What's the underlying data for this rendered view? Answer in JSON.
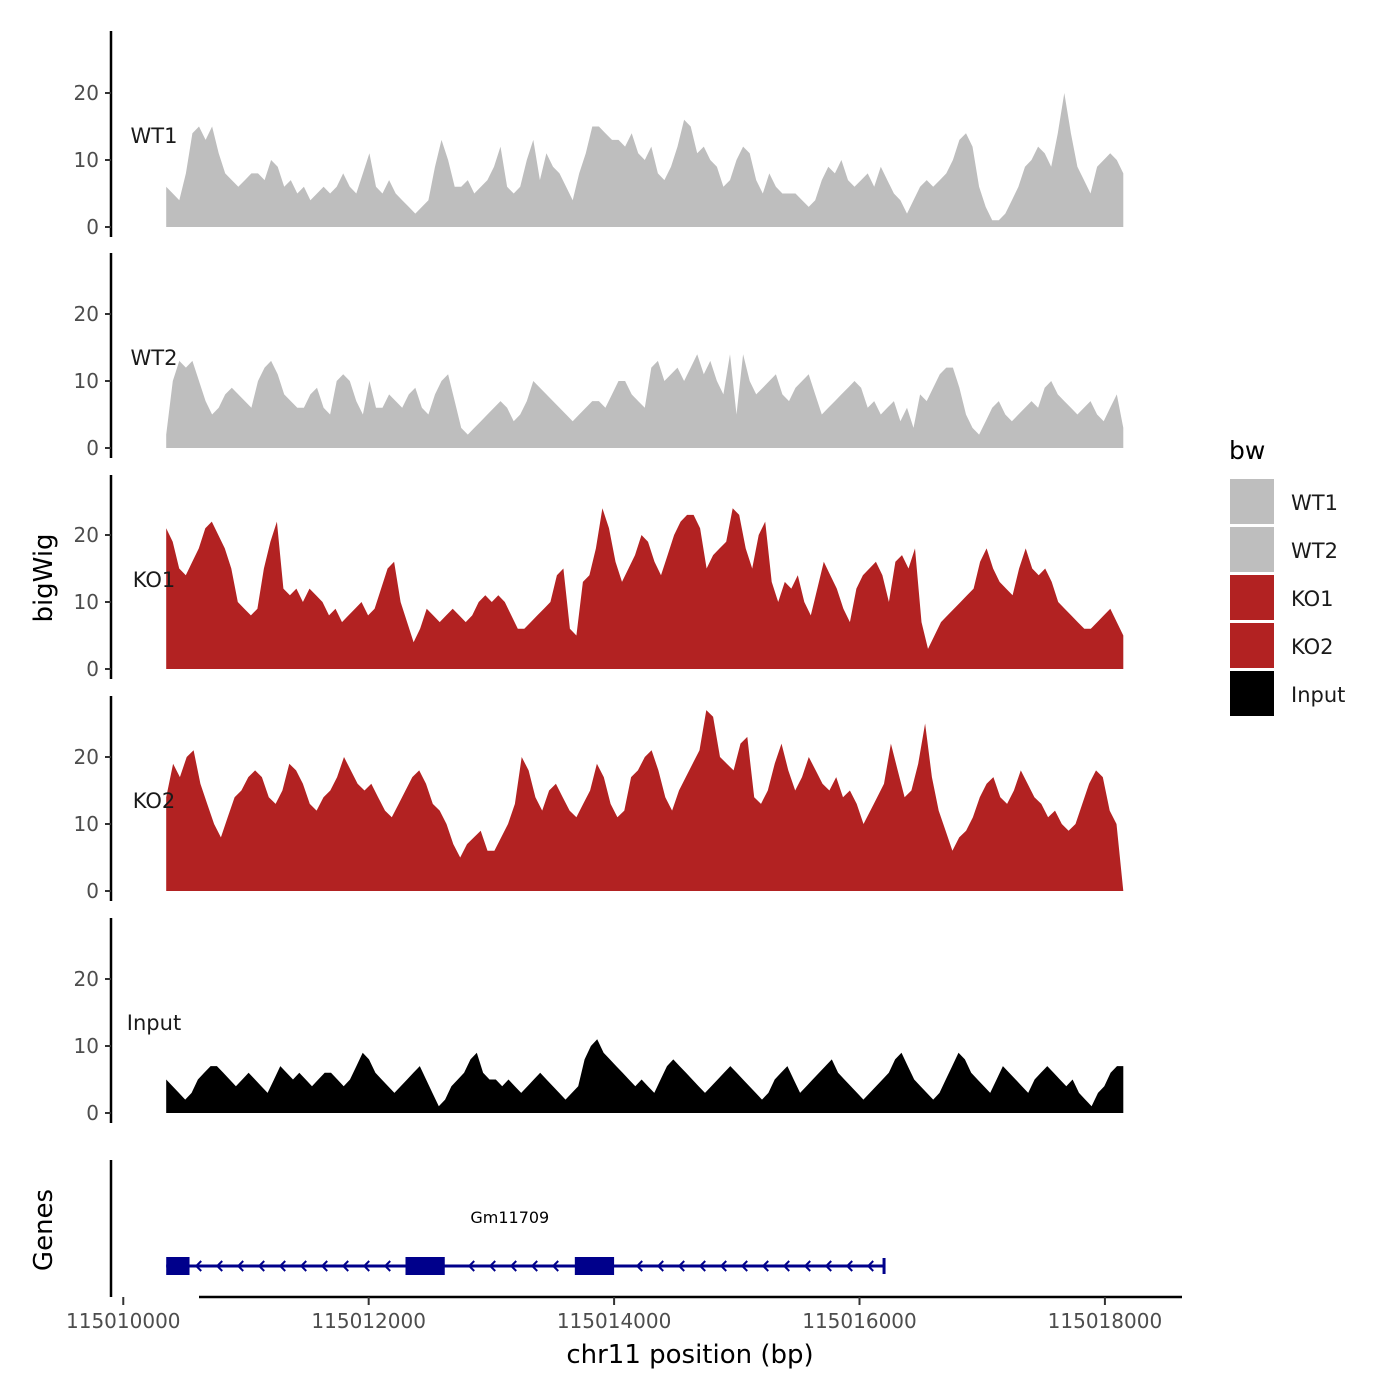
{
  "chart_data": {
    "type": "area",
    "ylabel": "bigWig",
    "xlabel": "chr11 position (bp)",
    "x_range": [
      115009900,
      115018400
    ],
    "x_ticks": [
      115010000,
      115012000,
      115014000,
      115016000,
      115018000
    ],
    "x_tick_labels": [
      "115010000",
      "115012000",
      "115014000",
      "115016000",
      "115018000"
    ],
    "ylim": [
      0,
      30
    ],
    "y_ticks": [
      0,
      10,
      20
    ],
    "y_tick_labels": [
      "0",
      "10",
      "20"
    ],
    "legend": {
      "title": "bw",
      "position": "right",
      "entries": [
        {
          "label": "WT1",
          "color": "#bebebe"
        },
        {
          "label": "WT2",
          "color": "#bebebe"
        },
        {
          "label": "KO1",
          "color": "#b22222"
        },
        {
          "label": "KO2",
          "color": "#b22222"
        },
        {
          "label": "Input",
          "color": "#000000"
        }
      ]
    },
    "x_start": 115010350,
    "x_end": 115018150,
    "series": [
      {
        "name": "WT1",
        "label": "WT1",
        "color": "#bebebe",
        "values": [
          6,
          5,
          4,
          8,
          14,
          15,
          13,
          15,
          11,
          8,
          7,
          6,
          7,
          8,
          8,
          7,
          10,
          9,
          6,
          7,
          5,
          6,
          4,
          5,
          6,
          5,
          6,
          8,
          6,
          5,
          8,
          11,
          6,
          5,
          7,
          5,
          4,
          3,
          2,
          3,
          4,
          9,
          13,
          10,
          6,
          6,
          7,
          5,
          6,
          7,
          9,
          12,
          6,
          5,
          6,
          10,
          13,
          7,
          11,
          9,
          8,
          6,
          4,
          8,
          11,
          15,
          15,
          14,
          13,
          13,
          12,
          14,
          11,
          10,
          12,
          8,
          7,
          9,
          12,
          16,
          15,
          11,
          12,
          10,
          9,
          6,
          7,
          10,
          12,
          11,
          7,
          5,
          8,
          6,
          5,
          5,
          5,
          4,
          3,
          4,
          7,
          9,
          8,
          10,
          7,
          6,
          7,
          8,
          6,
          9,
          7,
          5,
          4,
          2,
          4,
          6,
          7,
          6,
          7,
          8,
          10,
          13,
          14,
          12,
          6,
          3,
          1,
          1,
          2,
          4,
          6,
          9,
          10,
          12,
          11,
          9,
          14,
          20,
          14,
          9,
          7,
          5,
          9,
          10,
          11,
          10,
          8
        ]
      },
      {
        "name": "WT2",
        "label": "WT2",
        "color": "#bebebe",
        "values": [
          2,
          10,
          13,
          12,
          13,
          10,
          7,
          5,
          6,
          8,
          9,
          8,
          7,
          6,
          10,
          12,
          13,
          11,
          8,
          7,
          6,
          6,
          8,
          9,
          6,
          5,
          10,
          11,
          10,
          7,
          5,
          10,
          6,
          6,
          8,
          7,
          6,
          8,
          9,
          6,
          5,
          8,
          10,
          11,
          7,
          3,
          2,
          3,
          4,
          5,
          6,
          7,
          6,
          4,
          5,
          7,
          10,
          9,
          8,
          7,
          6,
          5,
          4,
          5,
          6,
          7,
          7,
          6,
          8,
          10,
          10,
          8,
          7,
          6,
          12,
          13,
          10,
          11,
          12,
          10,
          12,
          14,
          11,
          13,
          10,
          8,
          14,
          5,
          14,
          10,
          8,
          9,
          10,
          11,
          8,
          7,
          9,
          10,
          11,
          8,
          5,
          6,
          7,
          8,
          9,
          10,
          9,
          6,
          7,
          5,
          6,
          7,
          4,
          6,
          3,
          8,
          7,
          9,
          11,
          12,
          12,
          9,
          5,
          3,
          2,
          4,
          6,
          7,
          5,
          4,
          5,
          6,
          7,
          6,
          9,
          10,
          8,
          7,
          6,
          5,
          6,
          7,
          5,
          4,
          6,
          8,
          3
        ]
      },
      {
        "name": "KO1",
        "label": "KO1",
        "color": "#b22222",
        "values": [
          21,
          19,
          15,
          14,
          16,
          18,
          21,
          22,
          20,
          18,
          15,
          10,
          9,
          8,
          9,
          15,
          19,
          22,
          12,
          11,
          12,
          10,
          12,
          11,
          10,
          8,
          9,
          7,
          8,
          9,
          10,
          8,
          9,
          12,
          15,
          16,
          10,
          7,
          4,
          6,
          9,
          8,
          7,
          8,
          9,
          8,
          7,
          8,
          10,
          11,
          10,
          11,
          10,
          8,
          6,
          6,
          7,
          8,
          9,
          10,
          14,
          15,
          6,
          5,
          13,
          14,
          18,
          24,
          21,
          16,
          13,
          15,
          17,
          20,
          19,
          16,
          14,
          17,
          20,
          22,
          23,
          23,
          21,
          15,
          17,
          18,
          19,
          24,
          23,
          18,
          15,
          20,
          22,
          13,
          10,
          13,
          12,
          14,
          10,
          8,
          12,
          16,
          14,
          12,
          9,
          7,
          12,
          14,
          15,
          16,
          14,
          10,
          16,
          17,
          15,
          18,
          7,
          3,
          5,
          7,
          8,
          9,
          10,
          11,
          12,
          16,
          18,
          15,
          13,
          12,
          11,
          15,
          18,
          15,
          14,
          15,
          13,
          10,
          9,
          8,
          7,
          6,
          6,
          7,
          8,
          9,
          7,
          5
        ]
      },
      {
        "name": "KO2",
        "label": "KO2",
        "color": "#b22222",
        "values": [
          14,
          19,
          17,
          20,
          21,
          16,
          13,
          10,
          8,
          11,
          14,
          15,
          17,
          18,
          17,
          14,
          13,
          15,
          19,
          18,
          16,
          13,
          12,
          14,
          15,
          17,
          20,
          18,
          16,
          15,
          16,
          14,
          12,
          11,
          13,
          15,
          17,
          18,
          16,
          13,
          12,
          10,
          7,
          5,
          7,
          8,
          9,
          6,
          6,
          8,
          10,
          13,
          20,
          18,
          14,
          12,
          15,
          16,
          14,
          12,
          11,
          13,
          15,
          19,
          17,
          13,
          11,
          12,
          17,
          18,
          20,
          21,
          18,
          14,
          12,
          15,
          17,
          19,
          21,
          27,
          26,
          20,
          19,
          18,
          22,
          23,
          14,
          13,
          15,
          19,
          22,
          18,
          15,
          17,
          20,
          18,
          16,
          15,
          17,
          14,
          15,
          13,
          10,
          12,
          14,
          16,
          22,
          18,
          14,
          15,
          19,
          25,
          17,
          12,
          9,
          6,
          8,
          9,
          11,
          14,
          16,
          17,
          14,
          13,
          15,
          18,
          16,
          14,
          13,
          11,
          12,
          10,
          9,
          10,
          13,
          16,
          18,
          17,
          12,
          10,
          0
        ]
      },
      {
        "name": "Input",
        "label": "Input",
        "color": "#000000",
        "values": [
          5,
          4,
          3,
          2,
          3,
          5,
          6,
          7,
          7,
          6,
          5,
          4,
          5,
          6,
          5,
          4,
          3,
          5,
          7,
          6,
          5,
          6,
          5,
          4,
          5,
          6,
          6,
          5,
          4,
          5,
          7,
          9,
          8,
          6,
          5,
          4,
          3,
          4,
          5,
          6,
          7,
          5,
          3,
          1,
          2,
          4,
          5,
          6,
          8,
          9,
          6,
          5,
          5,
          4,
          5,
          4,
          3,
          4,
          5,
          6,
          5,
          4,
          3,
          2,
          3,
          4,
          8,
          10,
          11,
          9,
          8,
          7,
          6,
          5,
          4,
          5,
          4,
          3,
          5,
          7,
          8,
          7,
          6,
          5,
          4,
          3,
          4,
          5,
          6,
          7,
          6,
          5,
          4,
          3,
          2,
          3,
          5,
          6,
          7,
          5,
          3,
          4,
          5,
          6,
          7,
          8,
          6,
          5,
          4,
          3,
          2,
          3,
          4,
          5,
          6,
          8,
          9,
          7,
          5,
          4,
          3,
          2,
          3,
          5,
          7,
          9,
          8,
          6,
          5,
          4,
          3,
          5,
          7,
          6,
          5,
          4,
          3,
          5,
          6,
          7,
          6,
          5,
          4,
          5,
          3,
          2,
          1,
          3,
          4,
          6,
          7,
          7
        ]
      }
    ],
    "genes": {
      "title": "Genes",
      "strand": "-",
      "items": [
        {
          "name": "Gm11709",
          "start": 115010350,
          "end": 115016200,
          "exons": [
            [
              115010350,
              115010540
            ],
            [
              115012300,
              115012620
            ],
            [
              115013680,
              115014000
            ]
          ]
        }
      ]
    }
  }
}
